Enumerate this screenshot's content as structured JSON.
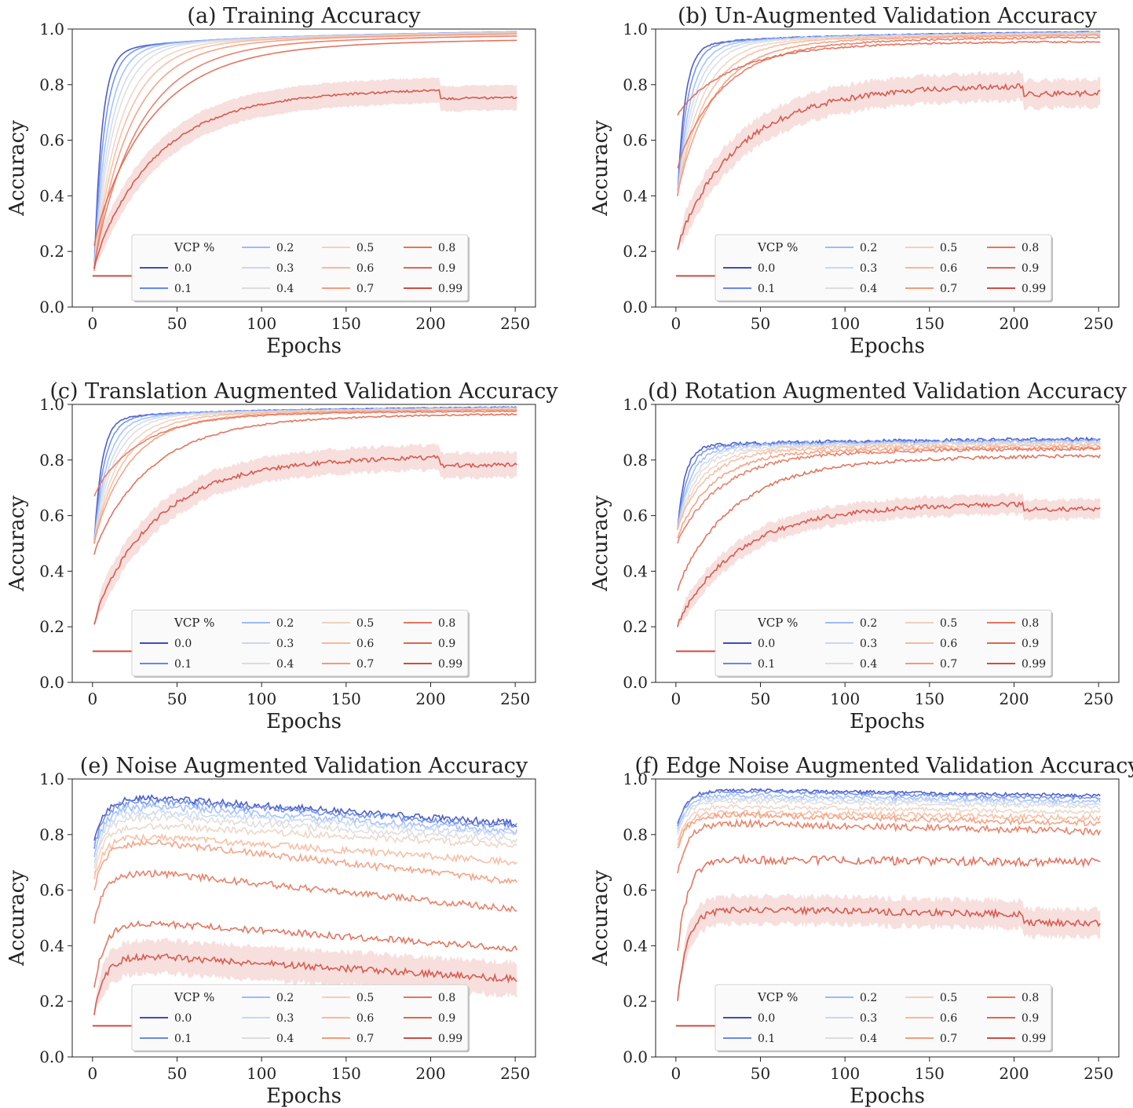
{
  "figure": {
    "legend_title": "VCP %",
    "legend_labels": [
      "0.0",
      "0.1",
      "0.2",
      "0.3",
      "0.4",
      "0.5",
      "0.6",
      "0.7",
      "0.8",
      "0.9",
      "0.99"
    ],
    "series_colors": [
      "#3b4cc0",
      "#6788ee",
      "#9abbff",
      "#c9d7f0",
      "#dddcdc",
      "#edd1c2",
      "#f7b89c",
      "#f49a7b",
      "#e7745b",
      "#e0654f",
      "#d24b40"
    ]
  },
  "chart_data": [
    {
      "type": "line",
      "title": "(a) Training Accuracy",
      "xlabel": "Epochs",
      "ylabel": "Accuracy",
      "xlim": [
        -12,
        262
      ],
      "ylim": [
        0,
        1
      ],
      "xticks": [
        "0",
        "50",
        "100",
        "150",
        "200",
        "250"
      ],
      "yticks": [
        "0.0",
        "0.2",
        "0.4",
        "0.6",
        "0.8",
        "1.0"
      ],
      "legend": "lower center",
      "grid": false,
      "series": [
        {
          "name": "0.0",
          "start": 0.13,
          "plateau": 0.99,
          "noise": 0,
          "drop": 0
        },
        {
          "name": "0.1",
          "start": 0.13,
          "plateau": 0.99,
          "noise": 0,
          "drop": 0
        },
        {
          "name": "0.2",
          "start": 0.13,
          "plateau": 0.99,
          "noise": 0,
          "drop": 0
        },
        {
          "name": "0.3",
          "start": 0.13,
          "plateau": 0.988,
          "noise": 0,
          "drop": 0
        },
        {
          "name": "0.4",
          "start": 0.13,
          "plateau": 0.988,
          "noise": 0,
          "drop": 0
        },
        {
          "name": "0.5",
          "start": 0.13,
          "plateau": 0.986,
          "noise": 0,
          "drop": 0
        },
        {
          "name": "0.6",
          "start": 0.13,
          "plateau": 0.985,
          "noise": 0,
          "drop": 0
        },
        {
          "name": "0.7",
          "start": 0.13,
          "plateau": 0.982,
          "noise": 0,
          "drop": 0
        },
        {
          "name": "0.8",
          "start": 0.14,
          "plateau": 0.975,
          "noise": 0,
          "drop": 0
        },
        {
          "name": "0.9",
          "start": 0.22,
          "plateau": 0.96,
          "noise": 0,
          "drop": 0
        },
        {
          "name": "0.99",
          "start": 0.14,
          "plateau": 0.785,
          "noise": 0.004,
          "drop": 0.03,
          "band": 0.045
        }
      ]
    },
    {
      "type": "line",
      "title": "(b) Un-Augmented Validation Accuracy",
      "xlabel": "Epochs",
      "ylabel": "Accuracy",
      "xlim": [
        -12,
        262
      ],
      "ylim": [
        0,
        1
      ],
      "xticks": [
        "0",
        "50",
        "100",
        "150",
        "200",
        "250"
      ],
      "yticks": [
        "0.0",
        "0.2",
        "0.4",
        "0.6",
        "0.8",
        "1.0"
      ],
      "legend": "lower center",
      "grid": false,
      "series": [
        {
          "name": "0.0",
          "start": 0.4,
          "plateau": 0.99,
          "noise": 0.002,
          "drop": 0
        },
        {
          "name": "0.1",
          "start": 0.4,
          "plateau": 0.99,
          "noise": 0.002,
          "drop": 0
        },
        {
          "name": "0.2",
          "start": 0.4,
          "plateau": 0.988,
          "noise": 0.002,
          "drop": 0
        },
        {
          "name": "0.3",
          "start": 0.4,
          "plateau": 0.987,
          "noise": 0.002,
          "drop": 0
        },
        {
          "name": "0.4",
          "start": 0.4,
          "plateau": 0.986,
          "noise": 0.002,
          "drop": 0
        },
        {
          "name": "0.5",
          "start": 0.4,
          "plateau": 0.984,
          "noise": 0.002,
          "drop": 0
        },
        {
          "name": "0.6",
          "start": 0.4,
          "plateau": 0.982,
          "noise": 0.002,
          "drop": 0
        },
        {
          "name": "0.7",
          "start": 0.4,
          "plateau": 0.978,
          "noise": 0.002,
          "drop": 0
        },
        {
          "name": "0.8",
          "start": 0.5,
          "plateau": 0.97,
          "noise": 0.003,
          "drop": 0
        },
        {
          "name": "0.9",
          "start": 0.69,
          "plateau": 0.955,
          "noise": 0.003,
          "drop": 0
        },
        {
          "name": "0.99",
          "start": 0.21,
          "plateau": 0.8,
          "noise": 0.01,
          "drop": 0.03,
          "band": 0.05
        }
      ]
    },
    {
      "type": "line",
      "title": "(c) Translation Augmented Validation Accuracy",
      "xlabel": "Epochs",
      "ylabel": "Accuracy",
      "xlim": [
        -12,
        262
      ],
      "ylim": [
        0,
        1
      ],
      "xticks": [
        "0",
        "50",
        "100",
        "150",
        "200",
        "250"
      ],
      "yticks": [
        "0.0",
        "0.2",
        "0.4",
        "0.6",
        "0.8",
        "1.0"
      ],
      "legend": "lower center",
      "grid": false,
      "series": [
        {
          "name": "0.0",
          "start": 0.5,
          "plateau": 0.99,
          "noise": 0.002,
          "drop": 0
        },
        {
          "name": "0.1",
          "start": 0.5,
          "plateau": 0.99,
          "noise": 0.002,
          "drop": 0
        },
        {
          "name": "0.2",
          "start": 0.5,
          "plateau": 0.988,
          "noise": 0.002,
          "drop": 0
        },
        {
          "name": "0.3",
          "start": 0.5,
          "plateau": 0.987,
          "noise": 0.002,
          "drop": 0
        },
        {
          "name": "0.4",
          "start": 0.5,
          "plateau": 0.986,
          "noise": 0.002,
          "drop": 0
        },
        {
          "name": "0.5",
          "start": 0.5,
          "plateau": 0.985,
          "noise": 0.002,
          "drop": 0
        },
        {
          "name": "0.6",
          "start": 0.5,
          "plateau": 0.983,
          "noise": 0.002,
          "drop": 0
        },
        {
          "name": "0.7",
          "start": 0.5,
          "plateau": 0.98,
          "noise": 0.002,
          "drop": 0
        },
        {
          "name": "0.8",
          "start": 0.67,
          "plateau": 0.975,
          "noise": 0.002,
          "drop": 0
        },
        {
          "name": "0.9",
          "start": 0.46,
          "plateau": 0.965,
          "noise": 0.003,
          "drop": 0
        },
        {
          "name": "0.99",
          "start": 0.21,
          "plateau": 0.815,
          "noise": 0.008,
          "drop": 0.03,
          "band": 0.045
        }
      ]
    },
    {
      "type": "line",
      "title": "(d) Rotation Augmented Validation Accuracy",
      "xlabel": "Epochs",
      "ylabel": "Accuracy",
      "xlim": [
        -12,
        262
      ],
      "ylim": [
        0,
        1
      ],
      "xticks": [
        "0",
        "50",
        "100",
        "150",
        "200",
        "250"
      ],
      "yticks": [
        "0.0",
        "0.2",
        "0.4",
        "0.6",
        "0.8",
        "1.0"
      ],
      "legend": "lower center",
      "grid": false,
      "series": [
        {
          "name": "0.0",
          "start": 0.55,
          "plateau": 0.875,
          "noise": 0.006,
          "drop": 0
        },
        {
          "name": "0.1",
          "start": 0.55,
          "plateau": 0.872,
          "noise": 0.006,
          "drop": 0
        },
        {
          "name": "0.2",
          "start": 0.55,
          "plateau": 0.868,
          "noise": 0.006,
          "drop": 0
        },
        {
          "name": "0.3",
          "start": 0.55,
          "plateau": 0.865,
          "noise": 0.006,
          "drop": 0
        },
        {
          "name": "0.4",
          "start": 0.55,
          "plateau": 0.862,
          "noise": 0.006,
          "drop": 0
        },
        {
          "name": "0.5",
          "start": 0.55,
          "plateau": 0.858,
          "noise": 0.006,
          "drop": 0
        },
        {
          "name": "0.6",
          "start": 0.55,
          "plateau": 0.852,
          "noise": 0.006,
          "drop": 0
        },
        {
          "name": "0.7",
          "start": 0.52,
          "plateau": 0.845,
          "noise": 0.006,
          "drop": 0
        },
        {
          "name": "0.8",
          "start": 0.5,
          "plateau": 0.84,
          "noise": 0.006,
          "drop": 0
        },
        {
          "name": "0.9",
          "start": 0.33,
          "plateau": 0.815,
          "noise": 0.006,
          "drop": 0
        },
        {
          "name": "0.99",
          "start": 0.2,
          "plateau": 0.645,
          "noise": 0.008,
          "drop": 0.02,
          "band": 0.035
        }
      ]
    },
    {
      "type": "line",
      "title": "(e) Noise Augmented Validation Accuracy",
      "xlabel": "Epochs",
      "ylabel": "Accuracy",
      "xlim": [
        -12,
        262
      ],
      "ylim": [
        0,
        1
      ],
      "xticks": [
        "0",
        "50",
        "100",
        "150",
        "200",
        "250"
      ],
      "yticks": [
        "0.0",
        "0.2",
        "0.4",
        "0.6",
        "0.8",
        "1.0"
      ],
      "legend": "lower center",
      "grid": false,
      "series": [
        {
          "name": "0.0",
          "start": 0.78,
          "plateau": 0.93,
          "end": 0.84,
          "noise": 0.012,
          "drop": 0
        },
        {
          "name": "0.1",
          "start": 0.75,
          "plateau": 0.92,
          "end": 0.83,
          "noise": 0.012,
          "drop": 0
        },
        {
          "name": "0.2",
          "start": 0.72,
          "plateau": 0.9,
          "end": 0.81,
          "noise": 0.012,
          "drop": 0
        },
        {
          "name": "0.3",
          "start": 0.7,
          "plateau": 0.88,
          "end": 0.8,
          "noise": 0.012,
          "drop": 0
        },
        {
          "name": "0.4",
          "start": 0.68,
          "plateau": 0.86,
          "end": 0.78,
          "noise": 0.012,
          "drop": 0
        },
        {
          "name": "0.5",
          "start": 0.66,
          "plateau": 0.83,
          "end": 0.76,
          "noise": 0.012,
          "drop": 0
        },
        {
          "name": "0.6",
          "start": 0.64,
          "plateau": 0.79,
          "end": 0.7,
          "noise": 0.012,
          "drop": 0
        },
        {
          "name": "0.7",
          "start": 0.6,
          "plateau": 0.77,
          "end": 0.63,
          "noise": 0.012,
          "drop": 0
        },
        {
          "name": "0.8",
          "start": 0.48,
          "plateau": 0.66,
          "end": 0.53,
          "noise": 0.012,
          "drop": 0
        },
        {
          "name": "0.9",
          "start": 0.25,
          "plateau": 0.48,
          "end": 0.39,
          "noise": 0.012,
          "drop": 0
        },
        {
          "name": "0.99",
          "start": 0.15,
          "plateau": 0.36,
          "end": 0.28,
          "noise": 0.012,
          "drop": 0,
          "band": 0.06
        }
      ]
    },
    {
      "type": "line",
      "title": "(f) Edge Noise Augmented Validation Accuracy",
      "xlabel": "Epochs",
      "ylabel": "Accuracy",
      "xlim": [
        -12,
        262
      ],
      "ylim": [
        0,
        1
      ],
      "xticks": [
        "0",
        "50",
        "100",
        "150",
        "200",
        "250"
      ],
      "yticks": [
        "0.0",
        "0.2",
        "0.4",
        "0.6",
        "0.8",
        "1.0"
      ],
      "legend": "lower center",
      "grid": false,
      "series": [
        {
          "name": "0.0",
          "start": 0.84,
          "plateau": 0.96,
          "end": 0.94,
          "noise": 0.006,
          "drop": 0
        },
        {
          "name": "0.1",
          "start": 0.83,
          "plateau": 0.955,
          "end": 0.93,
          "noise": 0.006,
          "drop": 0
        },
        {
          "name": "0.2",
          "start": 0.82,
          "plateau": 0.94,
          "end": 0.92,
          "noise": 0.008,
          "drop": 0
        },
        {
          "name": "0.3",
          "start": 0.81,
          "plateau": 0.93,
          "end": 0.91,
          "noise": 0.008,
          "drop": 0
        },
        {
          "name": "0.4",
          "start": 0.8,
          "plateau": 0.92,
          "end": 0.9,
          "noise": 0.008,
          "drop": 0
        },
        {
          "name": "0.5",
          "start": 0.78,
          "plateau": 0.9,
          "end": 0.88,
          "noise": 0.008,
          "drop": 0
        },
        {
          "name": "0.6",
          "start": 0.76,
          "plateau": 0.88,
          "end": 0.86,
          "noise": 0.01,
          "drop": 0
        },
        {
          "name": "0.7",
          "start": 0.75,
          "plateau": 0.87,
          "end": 0.84,
          "noise": 0.01,
          "drop": 0
        },
        {
          "name": "0.8",
          "start": 0.66,
          "plateau": 0.84,
          "end": 0.81,
          "noise": 0.012,
          "drop": 0
        },
        {
          "name": "0.9",
          "start": 0.38,
          "plateau": 0.71,
          "end": 0.7,
          "noise": 0.015,
          "drop": 0
        },
        {
          "name": "0.99",
          "start": 0.2,
          "plateau": 0.53,
          "end": 0.51,
          "noise": 0.012,
          "drop": 0.03,
          "band": 0.05
        }
      ]
    }
  ]
}
